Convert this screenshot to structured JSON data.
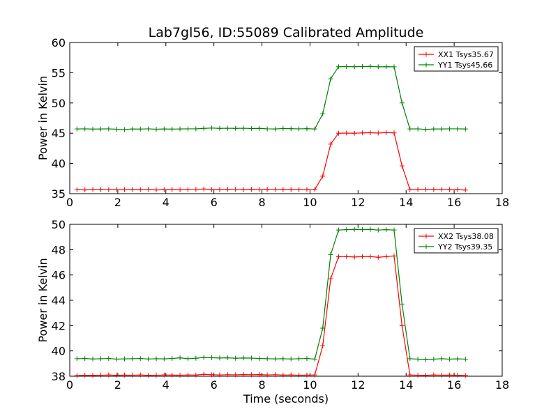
{
  "chart_data": {
    "type": "line",
    "title": "Lab7gl56, ID:55089 Calibrated Amplitude",
    "xlabel": "Time (seconds)",
    "x": [
      0.3,
      0.63,
      0.96,
      1.29,
      1.62,
      1.95,
      2.28,
      2.61,
      2.94,
      3.27,
      3.6,
      3.93,
      4.26,
      4.59,
      4.92,
      5.25,
      5.58,
      5.91,
      6.24,
      6.57,
      6.9,
      7.23,
      7.56,
      7.89,
      8.22,
      8.55,
      8.88,
      9.21,
      9.54,
      9.87,
      10.2,
      10.53,
      10.86,
      11.19,
      11.52,
      11.85,
      12.18,
      12.51,
      12.84,
      13.17,
      13.5,
      13.83,
      14.16,
      14.49,
      14.82,
      15.15,
      15.48,
      15.81,
      16.14,
      16.47
    ],
    "panels": [
      {
        "ylabel": "Power in Kelvin",
        "xlim": [
          0,
          18
        ],
        "ylim": [
          35,
          60
        ],
        "xticks": [
          0,
          2,
          4,
          6,
          8,
          10,
          12,
          14,
          16,
          18
        ],
        "yticks": [
          35,
          40,
          45,
          50,
          55,
          60
        ],
        "legend_position": "top-right",
        "series": [
          {
            "name": "XX1 Tsys35.67",
            "color": "#ff0000",
            "values": [
              35.67,
              35.62,
              35.7,
              35.66,
              35.64,
              35.69,
              35.63,
              35.68,
              35.65,
              35.7,
              35.62,
              35.66,
              35.69,
              35.63,
              35.67,
              35.7,
              35.78,
              35.66,
              35.68,
              35.72,
              35.7,
              35.65,
              35.72,
              35.69,
              35.72,
              35.7,
              35.66,
              35.67,
              35.68,
              35.7,
              35.68,
              37.9,
              43.2,
              45.0,
              45.02,
              45.0,
              45.05,
              45.08,
              45.02,
              45.1,
              45.05,
              39.6,
              35.68,
              35.7,
              35.68,
              35.66,
              35.7,
              35.67,
              35.66,
              35.6
            ]
          },
          {
            "name": "YY1 Tsys45.66",
            "color": "#008000",
            "values": [
              45.7,
              45.72,
              45.68,
              45.7,
              45.72,
              45.66,
              45.6,
              45.7,
              45.68,
              45.72,
              45.66,
              45.7,
              45.68,
              45.7,
              45.72,
              45.72,
              45.8,
              45.85,
              45.8,
              45.82,
              45.8,
              45.82,
              45.78,
              45.8,
              45.72,
              45.7,
              45.78,
              45.74,
              45.72,
              45.75,
              45.7,
              48.2,
              54.0,
              56.0,
              56.02,
              56.0,
              56.03,
              56.05,
              55.98,
              56.0,
              55.98,
              50.0,
              45.7,
              45.72,
              45.62,
              45.7,
              45.7,
              45.72,
              45.72,
              45.7
            ]
          }
        ]
      },
      {
        "ylabel": "Power in Kelvin",
        "xlim": [
          0,
          18
        ],
        "ylim": [
          38,
          50
        ],
        "xticks": [
          0,
          2,
          4,
          6,
          8,
          10,
          12,
          14,
          16,
          18
        ],
        "yticks": [
          38,
          40,
          42,
          44,
          46,
          48,
          50
        ],
        "legend_position": "top-right",
        "series": [
          {
            "name": "XX2 Tsys38.08",
            "color": "#ff0000",
            "values": [
              38.05,
              38.08,
              38.06,
              38.08,
              38.1,
              38.07,
              38.09,
              38.08,
              38.1,
              38.07,
              38.08,
              38.1,
              38.09,
              38.08,
              38.1,
              38.09,
              38.15,
              38.12,
              38.1,
              38.12,
              38.11,
              38.13,
              38.12,
              38.13,
              38.1,
              38.12,
              38.09,
              38.1,
              38.08,
              38.09,
              38.1,
              40.4,
              45.7,
              47.45,
              47.45,
              47.42,
              47.45,
              47.45,
              47.4,
              47.45,
              47.5,
              42.0,
              38.1,
              38.08,
              38.07,
              38.1,
              38.08,
              38.09,
              38.08,
              38.05
            ]
          },
          {
            "name": "YY2 Tsys39.35",
            "color": "#008000",
            "values": [
              39.38,
              39.4,
              39.36,
              39.38,
              39.4,
              39.35,
              39.37,
              39.38,
              39.4,
              39.36,
              39.38,
              39.37,
              39.4,
              39.45,
              39.38,
              39.42,
              39.48,
              39.46,
              39.44,
              39.45,
              39.42,
              39.44,
              39.43,
              39.4,
              39.38,
              39.37,
              39.38,
              39.36,
              39.38,
              39.4,
              39.35,
              41.8,
              47.6,
              49.55,
              49.58,
              49.6,
              49.58,
              49.6,
              49.55,
              49.58,
              49.55,
              43.7,
              39.38,
              39.35,
              39.3,
              39.35,
              39.38,
              39.35,
              39.37,
              39.35
            ]
          }
        ]
      }
    ]
  }
}
